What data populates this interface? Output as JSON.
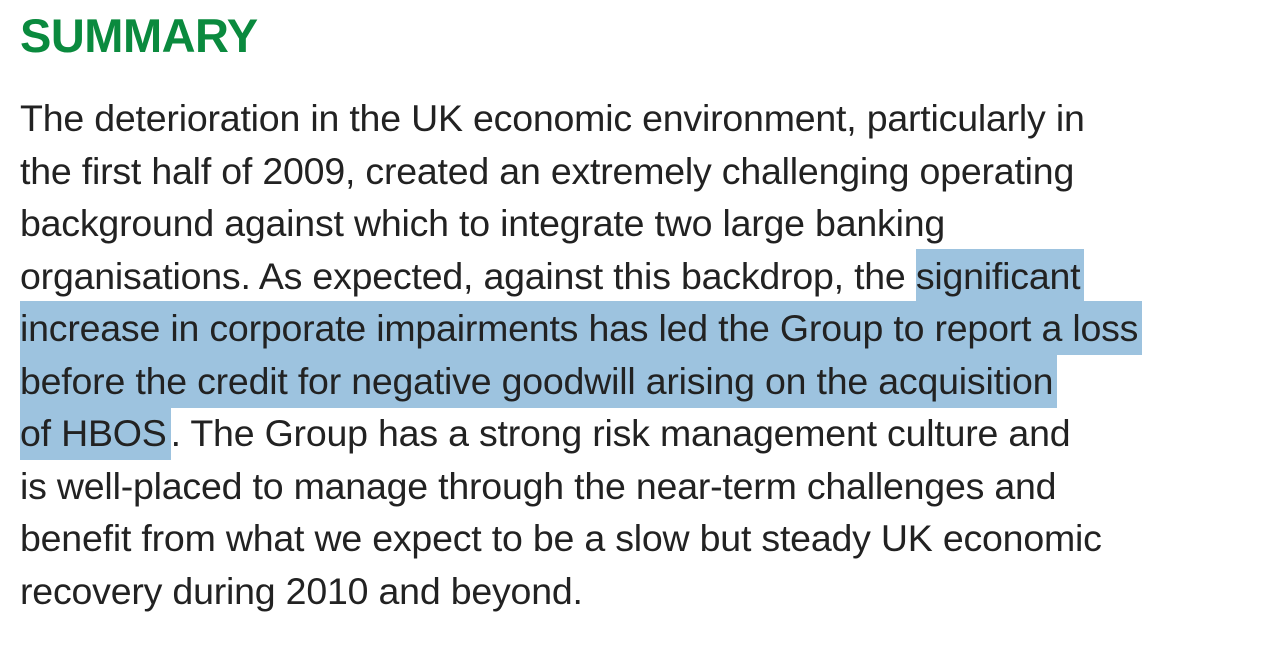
{
  "title": "SUMMARY",
  "highlight_color": "#9dc3df",
  "title_color": "#0a8a3e",
  "lines": [
    [
      {
        "text": "The deterioration in the UK economic environment, particularly in",
        "highlighted": false
      }
    ],
    [
      {
        "text": "the first half of 2009, created an extremely challenging operating",
        "highlighted": false
      }
    ],
    [
      {
        "text": "background against which to integrate two large banking",
        "highlighted": false
      }
    ],
    [
      {
        "text": "organisations. As expected, against this backdrop, the ",
        "highlighted": false
      },
      {
        "text": "significant",
        "highlighted": true
      }
    ],
    [
      {
        "text": "increase in corporate impairments has led the Group to report a loss",
        "highlighted": true
      }
    ],
    [
      {
        "text": "before the credit for negative goodwill arising on the acquisition",
        "highlighted": true
      }
    ],
    [
      {
        "text": "of HBOS",
        "highlighted": true
      },
      {
        "text": ". The Group has a strong risk management culture and",
        "highlighted": false
      }
    ],
    [
      {
        "text": "is well-placed to manage through the near-term challenges and",
        "highlighted": false
      }
    ],
    [
      {
        "text": "benefit from what we expect to be a slow but steady UK economic",
        "highlighted": false
      }
    ],
    [
      {
        "text": "recovery during 2010 and beyond.",
        "highlighted": false
      }
    ]
  ]
}
